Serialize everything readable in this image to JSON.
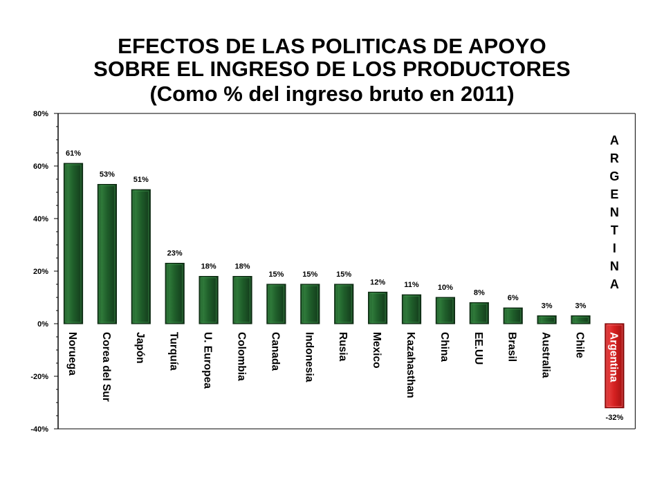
{
  "title": {
    "line1": "EFECTOS DE LAS POLITICAS DE APOYO",
    "line2": "SOBRE EL INGRESO DE LOS PRODUCTORES",
    "line3": "(Como % del ingreso bruto en 2011)"
  },
  "chart_data": {
    "type": "bar",
    "title": "EFECTOS DE LAS POLITICAS DE APOYO SOBRE EL INGRESO DE LOS PRODUCTORES (Como % del ingreso bruto en 2011)",
    "categories": [
      "Noruega",
      "Corea del Sur",
      "Japón",
      "Turquía",
      "U. Europea",
      "Colombia",
      "Canada",
      "Indonesia",
      "Rusia",
      "Mexico",
      "Kazahasthan",
      "China",
      "EE.UU",
      "Brasil",
      "Australia",
      "Chile",
      "Argentina"
    ],
    "values": [
      61,
      53,
      51,
      23,
      18,
      18,
      15,
      15,
      15,
      12,
      11,
      10,
      8,
      6,
      3,
      3,
      -32
    ],
    "value_labels": [
      "61%",
      "53%",
      "51%",
      "23%",
      "18%",
      "18%",
      "15%",
      "15%",
      "15%",
      "12%",
      "11%",
      "10%",
      "8%",
      "6%",
      "3%",
      "3%",
      "-32%"
    ],
    "ylim": [
      -40,
      80
    ],
    "yticks": [
      "-40%",
      "-20%",
      "0%",
      "20%",
      "40%",
      "60%",
      "80%"
    ],
    "ytick_values": [
      -40,
      -20,
      0,
      20,
      40,
      60,
      80
    ],
    "grid": false,
    "bar_color": "#1e5a28",
    "highlight_color": "#d42020",
    "highlight_category": "Argentina",
    "annotation": "ARGENTINA"
  }
}
